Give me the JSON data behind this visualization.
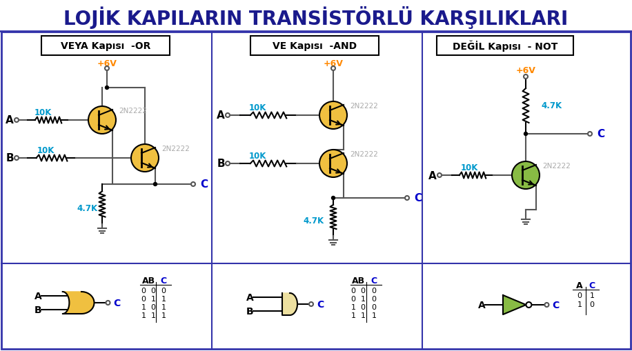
{
  "title": "LOJİK KAPILARIN TRANSİSTÖRLÜ KARŞILIKLARI",
  "title_color": "#1a1a8c",
  "title_fontsize": 20,
  "bg_color": "#ffffff",
  "grid_line_color": "#4444aa",
  "panel_titles": [
    "VEYA Kapısı  -OR",
    "VE Kapısı  -AND",
    "DEĞİL Kapısı  - NOT"
  ],
  "vcc_label": "+6V",
  "vcc_color": "#ff8800",
  "resistor_color": "#0099cc",
  "transistor_fill_yellow": "#f0c040",
  "transistor_fill_green": "#88bb44",
  "transistor_label_color": "#aaaaaa",
  "label_color": "#000000",
  "label_C_color": "#0000cc",
  "wire_color": "#555555",
  "or_gate_fill": "#f0c040",
  "and_gate_fill": "#ede0a0",
  "not_gate_fill": "#88bb44"
}
